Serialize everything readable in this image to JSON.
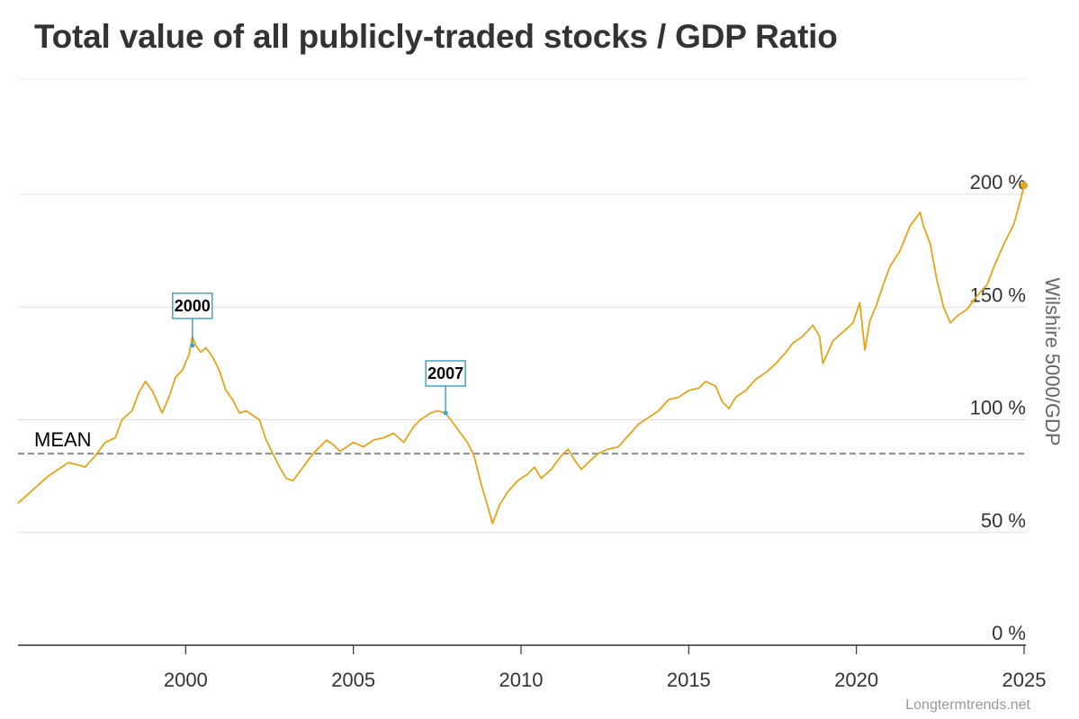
{
  "chart_data": {
    "type": "line",
    "title": "Total value of all publicly-traded stocks / GDP Ratio",
    "ylabel": "Wilshire 5000/GDP",
    "xlim": [
      1995.0,
      2025.0
    ],
    "ylim": [
      0,
      200
    ],
    "x_ticks": [
      2000,
      2005,
      2010,
      2015,
      2020,
      2025
    ],
    "y_ticks": [
      {
        "value": 0,
        "label": "0 %"
      },
      {
        "value": 50,
        "label": "50 %"
      },
      {
        "value": 100,
        "label": "100 %"
      },
      {
        "value": 150,
        "label": "150 %"
      },
      {
        "value": 200,
        "label": "200 %"
      }
    ],
    "grid": true,
    "series": [
      {
        "color": "#E8A317",
        "points": [
          [
            1995.0,
            63
          ],
          [
            1995.3,
            67
          ],
          [
            1995.6,
            71
          ],
          [
            1995.9,
            75
          ],
          [
            1996.2,
            78
          ],
          [
            1996.5,
            81
          ],
          [
            1996.8,
            80
          ],
          [
            1997.0,
            79
          ],
          [
            1997.3,
            84
          ],
          [
            1997.6,
            90
          ],
          [
            1997.9,
            92
          ],
          [
            1998.1,
            100
          ],
          [
            1998.4,
            104
          ],
          [
            1998.6,
            112
          ],
          [
            1998.8,
            117
          ],
          [
            1999.0,
            113
          ],
          [
            1999.3,
            103
          ],
          [
            1999.5,
            110
          ],
          [
            1999.7,
            119
          ],
          [
            1999.9,
            122
          ],
          [
            2000.1,
            129
          ],
          [
            2000.2,
            137
          ],
          [
            2000.3,
            133
          ],
          [
            2000.45,
            130
          ],
          [
            2000.6,
            132
          ],
          [
            2000.8,
            128
          ],
          [
            2001.0,
            122
          ],
          [
            2001.2,
            113
          ],
          [
            2001.4,
            109
          ],
          [
            2001.6,
            103
          ],
          [
            2001.8,
            104
          ],
          [
            2002.0,
            102
          ],
          [
            2002.2,
            100
          ],
          [
            2002.4,
            91
          ],
          [
            2002.6,
            85
          ],
          [
            2002.8,
            79
          ],
          [
            2003.0,
            74
          ],
          [
            2003.2,
            73
          ],
          [
            2003.4,
            77
          ],
          [
            2003.6,
            81
          ],
          [
            2003.8,
            85
          ],
          [
            2004.0,
            88
          ],
          [
            2004.2,
            91
          ],
          [
            2004.4,
            89
          ],
          [
            2004.6,
            86
          ],
          [
            2004.8,
            88
          ],
          [
            2005.0,
            90
          ],
          [
            2005.3,
            88
          ],
          [
            2005.6,
            91
          ],
          [
            2005.9,
            92
          ],
          [
            2006.2,
            94
          ],
          [
            2006.5,
            90
          ],
          [
            2006.8,
            97
          ],
          [
            2007.0,
            100
          ],
          [
            2007.3,
            103
          ],
          [
            2007.5,
            104
          ],
          [
            2007.75,
            103
          ],
          [
            2008.0,
            98
          ],
          [
            2008.2,
            94
          ],
          [
            2008.4,
            90
          ],
          [
            2008.6,
            84
          ],
          [
            2008.8,
            72
          ],
          [
            2009.0,
            62
          ],
          [
            2009.15,
            54
          ],
          [
            2009.35,
            62
          ],
          [
            2009.6,
            68
          ],
          [
            2009.9,
            73
          ],
          [
            2010.2,
            76
          ],
          [
            2010.4,
            79
          ],
          [
            2010.6,
            74
          ],
          [
            2010.9,
            78
          ],
          [
            2011.2,
            84
          ],
          [
            2011.4,
            87
          ],
          [
            2011.6,
            82
          ],
          [
            2011.8,
            78
          ],
          [
            2012.0,
            81
          ],
          [
            2012.3,
            85
          ],
          [
            2012.6,
            87
          ],
          [
            2012.9,
            88
          ],
          [
            2013.2,
            93
          ],
          [
            2013.5,
            98
          ],
          [
            2013.8,
            101
          ],
          [
            2014.1,
            104
          ],
          [
            2014.4,
            109
          ],
          [
            2014.7,
            110
          ],
          [
            2015.0,
            113
          ],
          [
            2015.3,
            114
          ],
          [
            2015.5,
            117
          ],
          [
            2015.8,
            115
          ],
          [
            2016.0,
            108
          ],
          [
            2016.2,
            105
          ],
          [
            2016.4,
            110
          ],
          [
            2016.7,
            113
          ],
          [
            2017.0,
            118
          ],
          [
            2017.3,
            121
          ],
          [
            2017.6,
            125
          ],
          [
            2017.9,
            130
          ],
          [
            2018.1,
            134
          ],
          [
            2018.4,
            137
          ],
          [
            2018.7,
            142
          ],
          [
            2018.9,
            137
          ],
          [
            2019.0,
            125
          ],
          [
            2019.3,
            135
          ],
          [
            2019.6,
            139
          ],
          [
            2019.9,
            143
          ],
          [
            2020.1,
            152
          ],
          [
            2020.25,
            131
          ],
          [
            2020.4,
            144
          ],
          [
            2020.6,
            151
          ],
          [
            2020.8,
            160
          ],
          [
            2021.0,
            168
          ],
          [
            2021.3,
            175
          ],
          [
            2021.6,
            186
          ],
          [
            2021.9,
            192
          ],
          [
            2022.0,
            186
          ],
          [
            2022.2,
            178
          ],
          [
            2022.4,
            162
          ],
          [
            2022.6,
            150
          ],
          [
            2022.8,
            143
          ],
          [
            2023.0,
            146
          ],
          [
            2023.3,
            149
          ],
          [
            2023.6,
            155
          ],
          [
            2023.9,
            160
          ],
          [
            2024.1,
            168
          ],
          [
            2024.4,
            178
          ],
          [
            2024.7,
            187
          ],
          [
            2024.9,
            198
          ],
          [
            2025.0,
            204
          ]
        ]
      }
    ],
    "mean": {
      "value": 85,
      "label": "MEAN"
    },
    "annotations": [
      {
        "label": "2000",
        "x": 2000.2,
        "y": 133
      },
      {
        "label": "2007",
        "x": 2007.75,
        "y": 103
      }
    ]
  },
  "credit": "Longtermtrends.net"
}
